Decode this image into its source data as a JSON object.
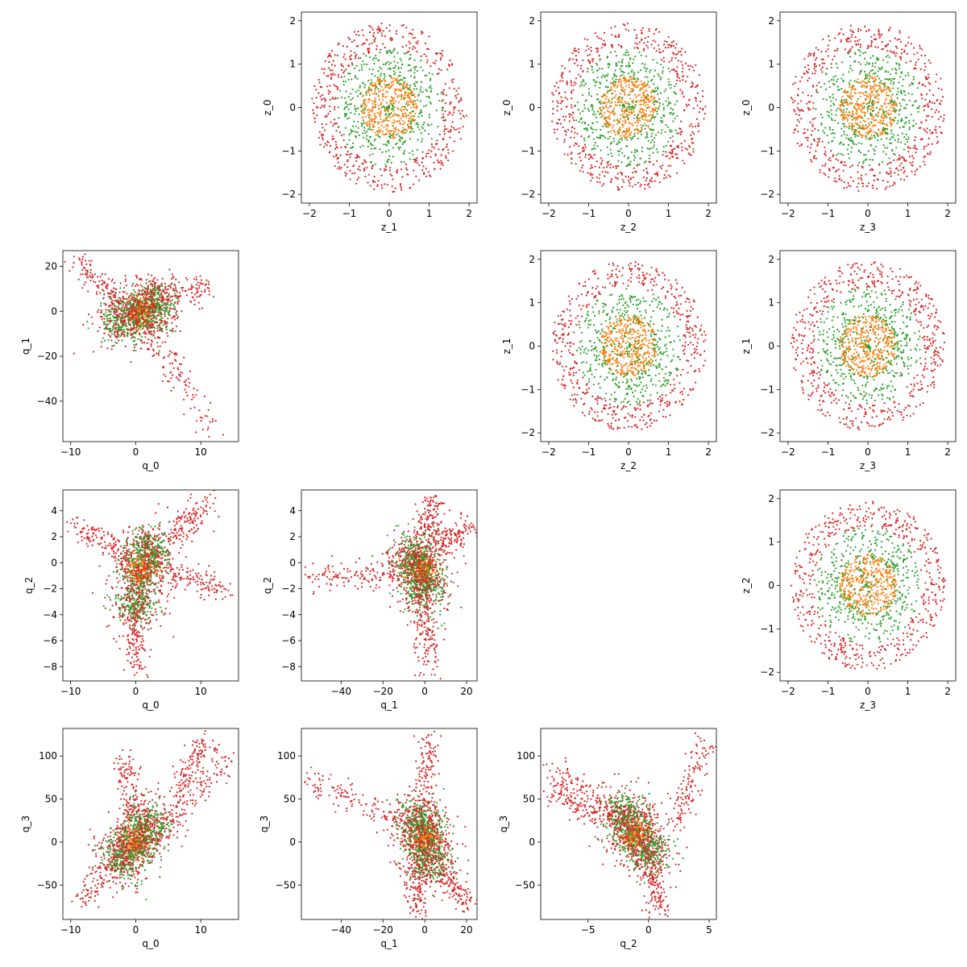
{
  "colors": {
    "red": "#d62728",
    "green": "#2ca02c",
    "orange": "#ff7f0e"
  },
  "chart_data": [
    {
      "type": "scatter",
      "kind": "ring",
      "xlabel": "z_1",
      "ylabel": "z_0",
      "xlim": [
        -2.2,
        2.2
      ],
      "ylim": [
        -2.2,
        2.2
      ],
      "xticks": [
        -2,
        -1,
        0,
        1,
        2
      ],
      "yticks": [
        -2,
        -1,
        0,
        1,
        2
      ]
    },
    {
      "type": "scatter",
      "kind": "ring",
      "xlabel": "z_2",
      "ylabel": "z_0",
      "xlim": [
        -2.2,
        2.2
      ],
      "ylim": [
        -2.2,
        2.2
      ],
      "xticks": [
        -2,
        -1,
        0,
        1,
        2
      ],
      "yticks": [
        -2,
        -1,
        0,
        1,
        2
      ]
    },
    {
      "type": "scatter",
      "kind": "ring",
      "xlabel": "z_3",
      "ylabel": "z_0",
      "xlim": [
        -2.2,
        2.2
      ],
      "ylim": [
        -2.2,
        2.2
      ],
      "xticks": [
        -2,
        -1,
        0,
        1,
        2
      ],
      "yticks": [
        -2,
        -1,
        0,
        1,
        2
      ]
    },
    {
      "type": "scatter",
      "kind": "ring",
      "xlabel": "z_2",
      "ylabel": "z_1",
      "xlim": [
        -2.2,
        2.2
      ],
      "ylim": [
        -2.2,
        2.2
      ],
      "xticks": [
        -2,
        -1,
        0,
        1,
        2
      ],
      "yticks": [
        -2,
        -1,
        0,
        1,
        2
      ]
    },
    {
      "type": "scatter",
      "kind": "ring",
      "xlabel": "z_3",
      "ylabel": "z_1",
      "xlim": [
        -2.2,
        2.2
      ],
      "ylim": [
        -2.2,
        2.2
      ],
      "xticks": [
        -2,
        -1,
        0,
        1,
        2
      ],
      "yticks": [
        -2,
        -1,
        0,
        1,
        2
      ]
    },
    {
      "type": "scatter",
      "kind": "ring",
      "xlabel": "z_3",
      "ylabel": "z_2",
      "xlim": [
        -2.2,
        2.2
      ],
      "ylim": [
        -2.2,
        2.2
      ],
      "xticks": [
        -2,
        -1,
        0,
        1,
        2
      ],
      "yticks": [
        -2,
        -1,
        0,
        1,
        2
      ]
    },
    {
      "type": "scatter",
      "kind": "cloud",
      "xlabel": "q_0",
      "ylabel": "q_1",
      "xlim": [
        -11.2,
        15.8
      ],
      "ylim": [
        -58,
        27
      ],
      "xticks": [
        -10,
        0,
        10
      ],
      "yticks": [
        -40,
        -20,
        0,
        20
      ],
      "centers": [
        [
          1,
          0
        ],
        [
          -2,
          -4
        ],
        [
          3,
          2
        ]
      ],
      "arms": [
        [
          [
            -9,
            22
          ],
          [
            -1,
            2
          ]
        ],
        [
          [
            1,
            -2
          ],
          [
            12,
            -54
          ]
        ],
        [
          [
            2,
            8
          ],
          [
            11,
            10
          ]
        ]
      ]
    },
    {
      "type": "scatter",
      "kind": "cloud",
      "xlabel": "q_0",
      "ylabel": "q_2",
      "xlim": [
        -11.2,
        15.8
      ],
      "ylim": [
        -9.1,
        5.6
      ],
      "xticks": [
        -10,
        0,
        10
      ],
      "yticks": [
        -8,
        -6,
        -4,
        -2,
        0,
        2,
        4
      ],
      "centers": [
        [
          1,
          -0.5
        ],
        [
          0,
          -3
        ],
        [
          2,
          1
        ]
      ],
      "arms": [
        [
          [
            -9,
            2.8
          ],
          [
            -1,
            0.5
          ]
        ],
        [
          [
            4,
            -0.5
          ],
          [
            14,
            -2.2
          ]
        ],
        [
          [
            6,
            2
          ],
          [
            11,
            4.8
          ]
        ],
        [
          [
            0,
            -4
          ],
          [
            0,
            -8.3
          ]
        ]
      ]
    },
    {
      "type": "scatter",
      "kind": "cloud",
      "xlabel": "q_1",
      "ylabel": "q_2",
      "xlim": [
        -59,
        25
      ],
      "ylim": [
        -9.1,
        5.6
      ],
      "xticks": [
        -40,
        -20,
        0,
        20
      ],
      "yticks": [
        -8,
        -6,
        -4,
        -2,
        0,
        2,
        4
      ],
      "centers": [
        [
          -2,
          -0.5
        ],
        [
          0,
          -2
        ],
        [
          -5,
          0.5
        ]
      ],
      "arms": [
        [
          [
            -55,
            -1
          ],
          [
            -10,
            -0.8
          ]
        ],
        [
          [
            5,
            1
          ],
          [
            20,
            2.8
          ]
        ],
        [
          [
            -1,
            -3
          ],
          [
            2,
            -8.3
          ]
        ],
        [
          [
            2,
            2
          ],
          [
            3,
            4.8
          ]
        ]
      ]
    },
    {
      "type": "scatter",
      "kind": "cloud",
      "xlabel": "q_0",
      "ylabel": "q_3",
      "xlim": [
        -11.2,
        15.8
      ],
      "ylim": [
        -90,
        132
      ],
      "xticks": [
        -10,
        0,
        10
      ],
      "yticks": [
        -50,
        0,
        50,
        100
      ],
      "centers": [
        [
          0,
          0
        ],
        [
          2,
          20
        ],
        [
          -2,
          -15
        ]
      ],
      "arms": [
        [
          [
            4,
            15
          ],
          [
            14,
            95
          ]
        ],
        [
          [
            -1,
            -10
          ],
          [
            -9,
            -70
          ]
        ],
        [
          [
            0,
            30
          ],
          [
            -2,
            95
          ]
        ],
        [
          [
            6,
            60
          ],
          [
            11,
            118
          ]
        ]
      ]
    },
    {
      "type": "scatter",
      "kind": "cloud",
      "xlabel": "q_1",
      "ylabel": "q_3",
      "xlim": [
        -59,
        25
      ],
      "ylim": [
        -90,
        132
      ],
      "xticks": [
        -40,
        -20,
        0,
        20
      ],
      "yticks": [
        -50,
        0,
        50,
        100
      ],
      "centers": [
        [
          0,
          5
        ],
        [
          -3,
          25
        ],
        [
          2,
          -20
        ]
      ],
      "arms": [
        [
          [
            -55,
            70
          ],
          [
            -10,
            25
          ]
        ],
        [
          [
            5,
            -30
          ],
          [
            20,
            -70
          ]
        ],
        [
          [
            0,
            30
          ],
          [
            2,
            118
          ]
        ],
        [
          [
            -5,
            -10
          ],
          [
            -3,
            -80
          ]
        ]
      ]
    },
    {
      "type": "scatter",
      "kind": "cloud",
      "xlabel": "q_2",
      "ylabel": "q_3",
      "xlim": [
        -8.9,
        5.6
      ],
      "ylim": [
        -90,
        132
      ],
      "xticks": [
        -5,
        0,
        5
      ],
      "yticks": [
        -50,
        0,
        50,
        100
      ],
      "centers": [
        [
          -1,
          10
        ],
        [
          0,
          -10
        ],
        [
          -2,
          30
        ]
      ],
      "arms": [
        [
          [
            -8,
            90
          ],
          [
            -1,
            10
          ]
        ],
        [
          [
            2,
            20
          ],
          [
            5,
            120
          ]
        ],
        [
          [
            0,
            -20
          ],
          [
            1,
            -80
          ]
        ],
        [
          [
            -4,
            30
          ],
          [
            -8,
            60
          ]
        ]
      ]
    }
  ]
}
